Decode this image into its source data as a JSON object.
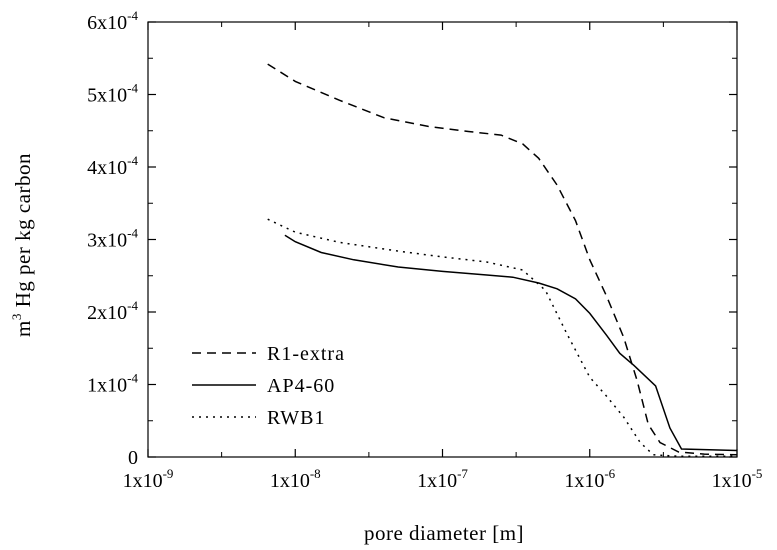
{
  "chart_data": {
    "type": "line",
    "xlabel": "pore diameter [m]",
    "ylabel_main": "m",
    "ylabel_sup": "3",
    "ylabel_rest": " Hg per kg carbon",
    "x_scale": "log",
    "xlim": [
      1e-09,
      1e-05
    ],
    "ylim": [
      0,
      0.0006
    ],
    "x_ticks": [
      {
        "value": 1e-09,
        "mantissa": "1x10",
        "exp": "-9"
      },
      {
        "value": 1e-08,
        "mantissa": "1x10",
        "exp": "-8"
      },
      {
        "value": 1e-07,
        "mantissa": "1x10",
        "exp": "-7"
      },
      {
        "value": 1e-06,
        "mantissa": "1x10",
        "exp": "-6"
      },
      {
        "value": 1e-05,
        "mantissa": "1x10",
        "exp": "-5"
      }
    ],
    "y_ticks": [
      {
        "value": 0,
        "mantissa": "0",
        "exp": ""
      },
      {
        "value": 0.0001,
        "mantissa": "1x10",
        "exp": "-4"
      },
      {
        "value": 0.0002,
        "mantissa": "2x10",
        "exp": "-4"
      },
      {
        "value": 0.0003,
        "mantissa": "3x10",
        "exp": "-4"
      },
      {
        "value": 0.0004,
        "mantissa": "4x10",
        "exp": "-4"
      },
      {
        "value": 0.0005,
        "mantissa": "5x10",
        "exp": "-4"
      },
      {
        "value": 0.0006,
        "mantissa": "6x10",
        "exp": "-4"
      }
    ],
    "legend_position": "bottom-left",
    "series": [
      {
        "name": "R1-extra",
        "style": "dashed",
        "x": [
          6.5e-09,
          1e-08,
          2e-08,
          4e-08,
          8e-08,
          1.5e-07,
          2.5e-07,
          3.5e-07,
          4.5e-07,
          6e-07,
          8e-07,
          1e-06,
          1.3e-06,
          1.7e-06,
          2.1e-06,
          2.5e-06,
          3e-06,
          4e-06,
          6e-06,
          1e-05
        ],
        "y": [
          0.000542,
          0.000518,
          0.000492,
          0.000468,
          0.000456,
          0.000449,
          0.000444,
          0.000432,
          0.000412,
          0.000375,
          0.000326,
          0.000272,
          0.000222,
          0.000165,
          0.000105,
          4.5e-05,
          2e-05,
          7e-06,
          4e-06,
          3e-06
        ]
      },
      {
        "name": "AP4-60",
        "style": "solid",
        "x": [
          8.5e-09,
          1e-08,
          1.5e-08,
          2.5e-08,
          5e-08,
          1e-07,
          2e-07,
          3e-07,
          4.5e-07,
          6e-07,
          8e-07,
          1e-06,
          1.3e-06,
          1.6e-06,
          2e-06,
          2.8e-06,
          3.5e-06,
          4.2e-06,
          1e-05
        ],
        "y": [
          0.000306,
          0.000297,
          0.000282,
          0.000272,
          0.000262,
          0.000256,
          0.000251,
          0.000248,
          0.00024,
          0.000232,
          0.000218,
          0.000198,
          0.000168,
          0.000143,
          0.000126,
          9.8e-05,
          4e-05,
          1.1e-05,
          9e-06
        ]
      },
      {
        "name": "RWB1",
        "style": "dotted",
        "x": [
          6.5e-09,
          1e-08,
          2e-08,
          5e-08,
          1e-07,
          2e-07,
          3.5e-07,
          5e-07,
          7e-07,
          1e-06,
          1.3e-06,
          1.7e-06,
          2.2e-06,
          2.7e-06,
          4e-06,
          1e-05
        ],
        "y": [
          0.000328,
          0.00031,
          0.000296,
          0.000284,
          0.000276,
          0.000269,
          0.000258,
          0.00023,
          0.00017,
          0.00011,
          8.4e-05,
          5.5e-05,
          2e-05,
          3e-06,
          1e-06,
          1e-06
        ]
      }
    ]
  }
}
